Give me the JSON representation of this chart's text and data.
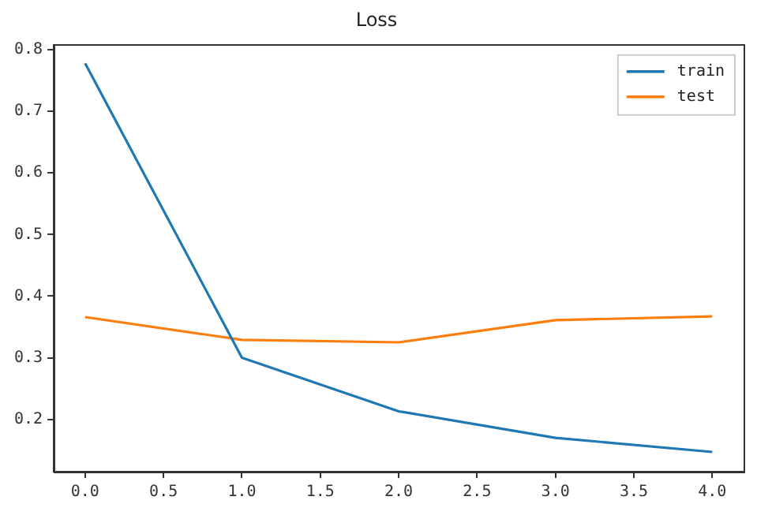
{
  "chart_data": {
    "type": "line",
    "title": "Loss",
    "x": [
      0,
      1,
      2,
      3,
      4
    ],
    "series": [
      {
        "name": "train",
        "color": "#1f77b4",
        "values": [
          0.778,
          0.3,
          0.213,
          0.17,
          0.147
        ]
      },
      {
        "name": "test",
        "color": "#ff7f0e",
        "values": [
          0.366,
          0.329,
          0.325,
          0.361,
          0.367
        ]
      }
    ],
    "xlim": [
      -0.2,
      4.2
    ],
    "xticks": [
      {
        "value": 0,
        "label": "0.0"
      },
      {
        "value": 0.5,
        "label": "0.5"
      },
      {
        "value": 1,
        "label": "1.0"
      },
      {
        "value": 1.5,
        "label": "1.5"
      },
      {
        "value": 2,
        "label": "2.0"
      },
      {
        "value": 2.5,
        "label": "2.5"
      },
      {
        "value": 3,
        "label": "3.0"
      },
      {
        "value": 3.5,
        "label": "3.5"
      },
      {
        "value": 4,
        "label": "4.0"
      }
    ],
    "ylim": [
      0.115,
      0.808
    ],
    "yticks": [
      0.2,
      0.3,
      0.4,
      0.5,
      0.6,
      0.7,
      0.8
    ],
    "grid": false,
    "legend": "top right",
    "marker": "none",
    "line_style": "solid"
  }
}
